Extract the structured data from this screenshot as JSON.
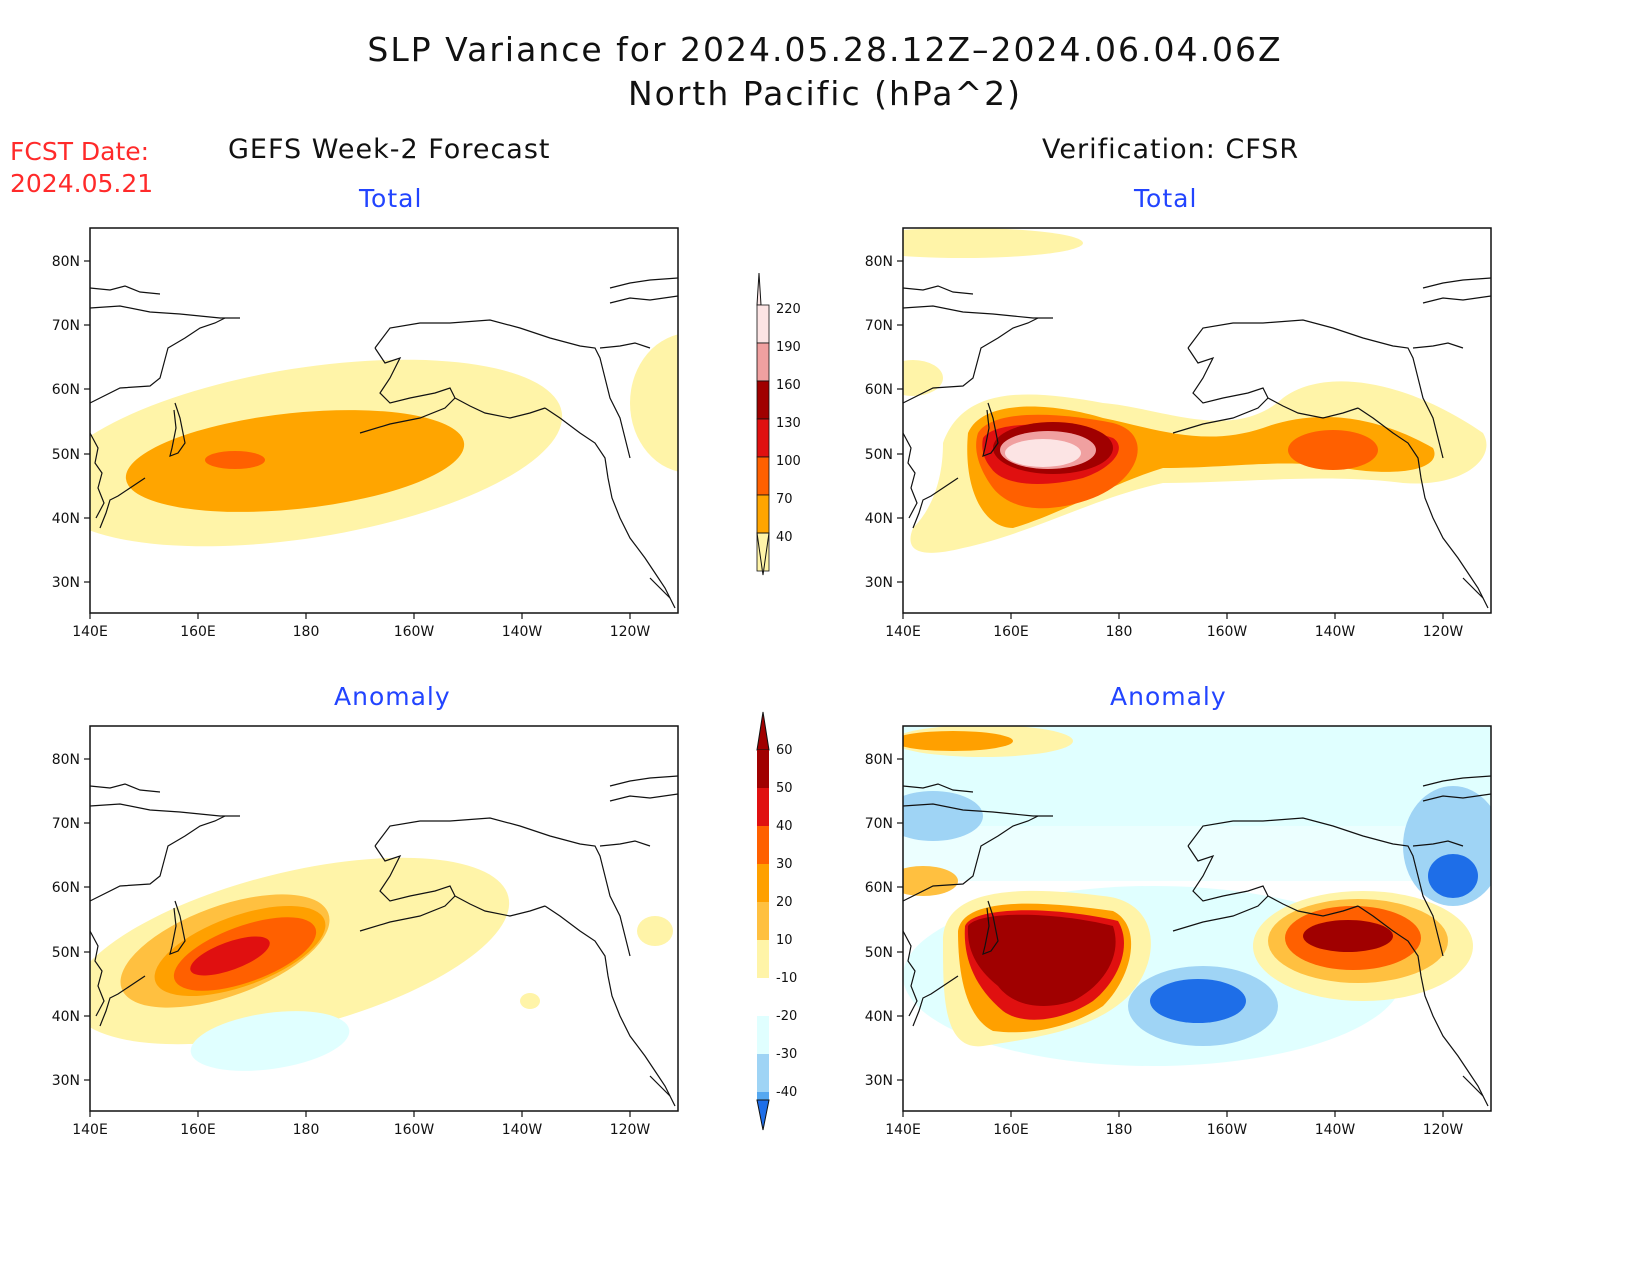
{
  "title": {
    "line1": "SLP Variance for 2024.05.28.12Z–2024.06.04.06Z",
    "line2": "North Pacific (hPa^2)"
  },
  "fcst": {
    "label": "FCST Date:",
    "date": "2024.05.21"
  },
  "columns": {
    "left": "GEFS Week-2 Forecast",
    "right": "Verification: CFSR"
  },
  "rows": {
    "top": "Total",
    "bottom": "Anomaly"
  },
  "axes": {
    "lat_ticks": [
      "80N",
      "70N",
      "60N",
      "50N",
      "40N",
      "30N"
    ],
    "lon_ticks": [
      "140E",
      "160E",
      "180",
      "160W",
      "140W",
      "120W"
    ]
  },
  "colors": {
    "total": [
      "#fff4a8",
      "#ffa500",
      "#ff6000",
      "#e01010",
      "#a00000",
      "#f0a0a0",
      "#fce4e4"
    ],
    "anomaly_pos": [
      "#fff4a8",
      "#ffc040",
      "#ffa000",
      "#ff6000",
      "#e01010",
      "#a00000"
    ],
    "anomaly_neg": [
      "#e0ffff",
      "#9fd4f5",
      "#56a8f0",
      "#1e6ee8"
    ]
  },
  "colorbar_total": [
    "220",
    "190",
    "160",
    "130",
    "100",
    "70",
    "40"
  ],
  "colorbar_anomaly": [
    "60",
    "50",
    "40",
    "30",
    "20",
    "10",
    "-10",
    "-20",
    "-30",
    "-40"
  ]
}
